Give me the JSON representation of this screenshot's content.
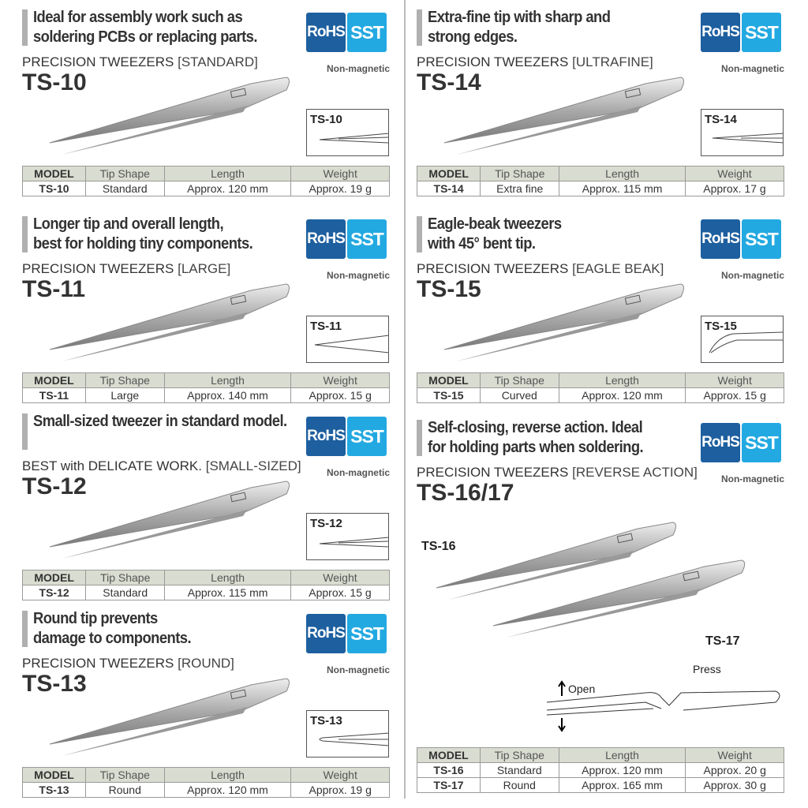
{
  "colors": {
    "rohs": "#1d5f9f",
    "sst": "#23a9e1",
    "table_header": "#d9dcd0"
  },
  "badges": {
    "rohs": "RoHS",
    "sst": "SST",
    "non_magnetic": "Non-magnetic"
  },
  "table_headers": [
    "MODEL",
    "Tip Shape",
    "Length",
    "Weight"
  ],
  "products": [
    {
      "id": "ts10",
      "headline": "Ideal for assembly work such as\nsoldering PCBs or replacing parts.",
      "category": "PRECISION TWEEZERS",
      "bracket": "[STANDARD]",
      "model": "TS-10",
      "tip_label": "TS-10",
      "tip": "pointed",
      "rows": [
        [
          "TS-10",
          "Standard",
          "Approx. 120 mm",
          "Approx. 19 g"
        ]
      ]
    },
    {
      "id": "ts11",
      "headline": "Longer tip and overall length,\nbest for holding tiny components.",
      "category": "PRECISION TWEEZERS",
      "bracket": "[LARGE]",
      "model": "TS-11",
      "tip_label": "TS-11",
      "tip": "long",
      "rows": [
        [
          "TS-11",
          "Large",
          "Approx. 140 mm",
          "Approx. 15 g"
        ]
      ]
    },
    {
      "id": "ts12",
      "headline": "Small-sized tweezer in standard model.",
      "category": "BEST with DELICATE WORK.",
      "bracket": "[SMALL-SIZED]",
      "model": "TS-12",
      "tip_label": "TS-12",
      "tip": "pointed",
      "rows": [
        [
          "TS-12",
          "Standard",
          "Approx. 115 mm",
          "Approx. 15 g"
        ]
      ]
    },
    {
      "id": "ts13",
      "headline": "Round tip prevents\ndamage to components.",
      "category": "PRECISION TWEEZERS",
      "bracket": "[ROUND]",
      "model": "TS-13",
      "tip_label": "TS-13",
      "tip": "round",
      "rows": [
        [
          "TS-13",
          "Round",
          "Approx. 120 mm",
          "Approx. 19 g"
        ]
      ]
    },
    {
      "id": "ts14",
      "headline": "Extra-fine tip with sharp and\nstrong edges.",
      "category": "PRECISION TWEEZERS",
      "bracket": "[ULTRAFINE]",
      "model": "TS-14",
      "tip_label": "TS-14",
      "tip": "fine",
      "rows": [
        [
          "TS-14",
          "Extra fine",
          "Approx. 115 mm",
          "Approx. 17 g"
        ]
      ]
    },
    {
      "id": "ts15",
      "headline": "Eagle-beak tweezers\nwith 45° bent tip.",
      "category": "PRECISION TWEEZERS",
      "bracket": "[EAGLE BEAK]",
      "model": "TS-15",
      "tip_label": "TS-15",
      "tip": "bent",
      "rows": [
        [
          "TS-15",
          "Curved",
          "Approx. 120 mm",
          "Approx. 15 g"
        ]
      ]
    },
    {
      "id": "ts1617",
      "headline": "Self-closing, reverse action. Ideal\nfor holding parts when soldering.",
      "category": "PRECISION TWEEZERS",
      "bracket": "[REVERSE ACTION]",
      "model": "TS-16/17",
      "labels": [
        "TS-16",
        "TS-17"
      ],
      "diagram": {
        "press": "Press",
        "open": "Open"
      },
      "rows": [
        [
          "TS-16",
          "Standard",
          "Approx. 120 mm",
          "Approx. 20 g"
        ],
        [
          "TS-17",
          "Round",
          "Approx. 165 mm",
          "Approx. 30 g"
        ]
      ]
    }
  ]
}
